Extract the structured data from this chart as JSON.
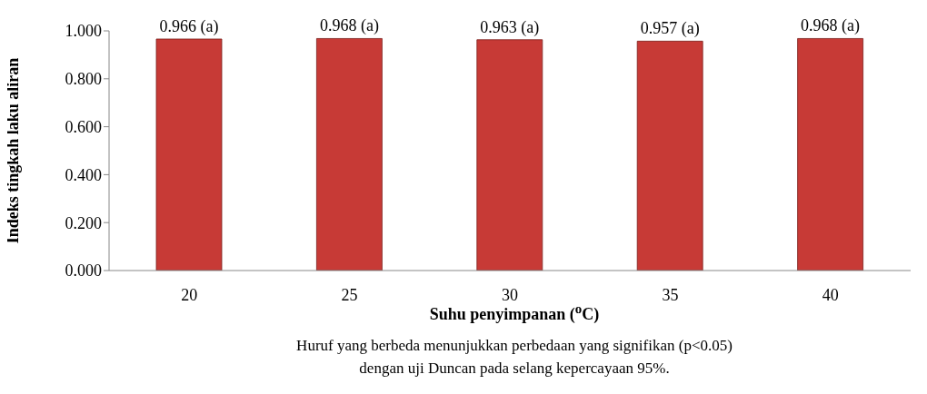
{
  "chart_data": {
    "type": "bar",
    "xlabel": "Suhu penyimpanan ($^{o}$C)",
    "ylabel": "Indeks tingkah laku aliran",
    "categories": [
      "20",
      "25",
      "30",
      "35",
      "40"
    ],
    "values": [
      0.966,
      0.968,
      0.963,
      0.957,
      0.968
    ],
    "value_labels": [
      "0.966 (a)",
      "0.968 (a)",
      "0.963 (a)",
      "0.957 (a)",
      "0.968 (a)"
    ],
    "color": "#c73a36",
    "ylim": [
      0,
      1
    ],
    "yticks": [
      {
        "value": 0,
        "label": "0.000"
      },
      {
        "value": 0.2,
        "label": "0.200"
      },
      {
        "value": 0.4,
        "label": "0.400"
      },
      {
        "value": 0.6,
        "label": "0.600"
      },
      {
        "value": 0.8,
        "label": "0.800"
      },
      {
        "value": 1,
        "label": "1.000"
      }
    ],
    "grid": false,
    "legend": false,
    "annotations": [
      "Huruf yang berbeda menunjukkan perbedaan yang signifikan (p<0.05)",
      "dengan uji Duncan pada selang kepercayaan 95%."
    ]
  }
}
